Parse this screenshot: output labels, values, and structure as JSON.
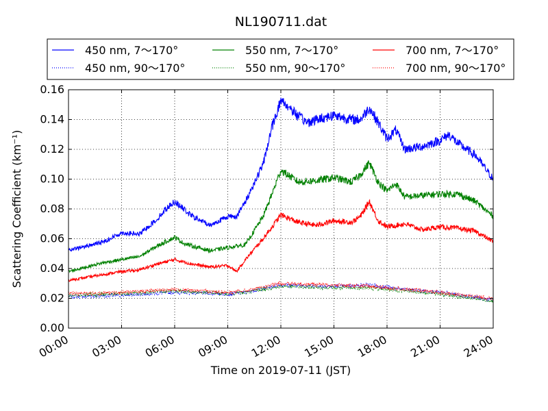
{
  "chart_data": {
    "type": "line",
    "title": "NL190711.dat",
    "xlabel": "Time on 2019-07-11 (JST)",
    "ylabel": "Scattering Coefficient (km⁻¹)",
    "x_unit": "hours",
    "xlim": [
      0,
      24
    ],
    "ylim": [
      0,
      0.16
    ],
    "xticks": [
      0,
      3,
      6,
      9,
      12,
      15,
      18,
      21,
      24
    ],
    "xtick_labels": [
      "00:00",
      "03:00",
      "06:00",
      "09:00",
      "12:00",
      "15:00",
      "18:00",
      "21:00",
      "24:00"
    ],
    "yticks": [
      0,
      0.02,
      0.04,
      0.06,
      0.08,
      0.1,
      0.12,
      0.14,
      0.16
    ],
    "ytick_labels": [
      "0.00",
      "0.02",
      "0.04",
      "0.06",
      "0.08",
      "0.10",
      "0.12",
      "0.14",
      "0.16"
    ],
    "grid": true,
    "legend_position": "top",
    "series": [
      {
        "name": "450 nm, 7～170°",
        "color": "#0000ff",
        "linestyle": "solid",
        "x": [
          0,
          1,
          2,
          3,
          4,
          5,
          5.5,
          6,
          6.5,
          7,
          8,
          9,
          9.5,
          10,
          11,
          11.5,
          12,
          12.5,
          13,
          13.5,
          14,
          15,
          16,
          16.5,
          17,
          17.5,
          18,
          18.5,
          19,
          20,
          21,
          21.5,
          22,
          23,
          24
        ],
        "y": [
          0.052,
          0.055,
          0.058,
          0.064,
          0.063,
          0.073,
          0.08,
          0.085,
          0.08,
          0.075,
          0.069,
          0.075,
          0.075,
          0.085,
          0.11,
          0.135,
          0.153,
          0.148,
          0.142,
          0.138,
          0.14,
          0.143,
          0.14,
          0.14,
          0.148,
          0.138,
          0.127,
          0.133,
          0.12,
          0.122,
          0.126,
          0.13,
          0.124,
          0.116,
          0.1
        ]
      },
      {
        "name": "450 nm, 90～170°",
        "color": "#0000ff",
        "linestyle": "dotted",
        "x": [
          0,
          3,
          6,
          9,
          10,
          12,
          15,
          17,
          19,
          21,
          24
        ],
        "y": [
          0.021,
          0.022,
          0.024,
          0.023,
          0.024,
          0.029,
          0.028,
          0.029,
          0.026,
          0.024,
          0.019
        ]
      },
      {
        "name": "550 nm, 7～170°",
        "color": "#008000",
        "linestyle": "solid",
        "x": [
          0,
          1,
          2,
          3,
          4,
          5,
          6,
          6.5,
          7,
          8,
          9,
          10,
          11,
          11.5,
          12,
          12.5,
          13,
          14,
          15,
          16,
          16.5,
          17,
          17.5,
          18,
          18.5,
          19,
          20,
          21,
          22,
          23,
          24
        ],
        "y": [
          0.038,
          0.041,
          0.044,
          0.046,
          0.048,
          0.055,
          0.061,
          0.057,
          0.055,
          0.052,
          0.054,
          0.056,
          0.075,
          0.09,
          0.106,
          0.102,
          0.098,
          0.099,
          0.101,
          0.098,
          0.103,
          0.111,
          0.098,
          0.092,
          0.097,
          0.088,
          0.089,
          0.09,
          0.09,
          0.085,
          0.075
        ]
      },
      {
        "name": "550 nm, 90～170°",
        "color": "#008000",
        "linestyle": "dotted",
        "x": [
          0,
          3,
          6,
          9,
          10,
          12,
          15,
          17,
          19,
          21,
          24
        ],
        "y": [
          0.022,
          0.023,
          0.025,
          0.023,
          0.024,
          0.028,
          0.027,
          0.027,
          0.025,
          0.023,
          0.018
        ]
      },
      {
        "name": "700 nm, 7～170°",
        "color": "#ff0000",
        "linestyle": "solid",
        "x": [
          0,
          1,
          2,
          3,
          4,
          5,
          6,
          7,
          8,
          9,
          9.5,
          10,
          11,
          11.5,
          12,
          13,
          14,
          15,
          16,
          16.5,
          17,
          17.5,
          18,
          19,
          20,
          21,
          22,
          23,
          24
        ],
        "y": [
          0.032,
          0.034,
          0.036,
          0.038,
          0.039,
          0.043,
          0.046,
          0.043,
          0.041,
          0.042,
          0.038,
          0.046,
          0.06,
          0.068,
          0.076,
          0.071,
          0.069,
          0.072,
          0.071,
          0.075,
          0.085,
          0.072,
          0.068,
          0.07,
          0.066,
          0.068,
          0.067,
          0.065,
          0.058
        ]
      },
      {
        "name": "700 nm, 90～170°",
        "color": "#ff0000",
        "linestyle": "dotted",
        "x": [
          0,
          3,
          6,
          9,
          10,
          12,
          15,
          17,
          19,
          21,
          24
        ],
        "y": [
          0.023,
          0.024,
          0.026,
          0.024,
          0.025,
          0.03,
          0.029,
          0.028,
          0.026,
          0.024,
          0.02
        ]
      }
    ]
  }
}
